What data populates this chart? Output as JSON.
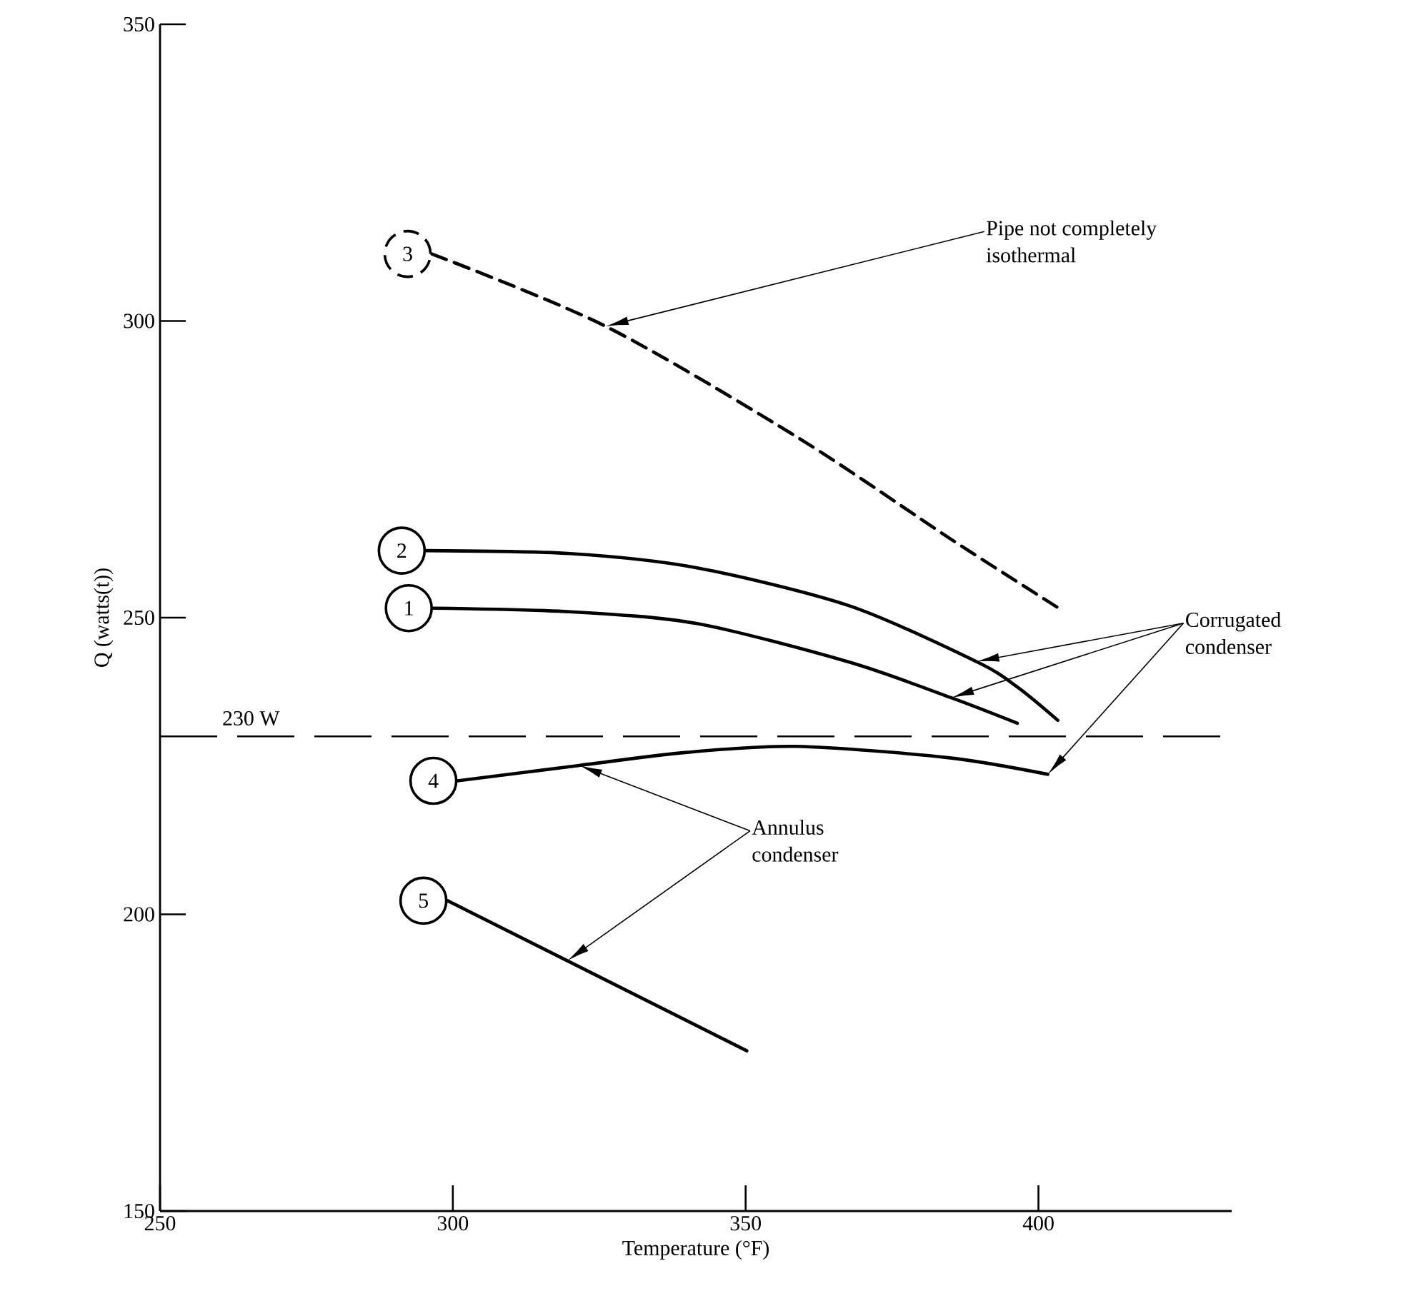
{
  "chart_data": {
    "type": "line",
    "xlabel": "Temperature (°F)",
    "ylabel": "Q (watts(t))",
    "xlim": [
      250,
      433
    ],
    "ylim": [
      150,
      350
    ],
    "xticks": [
      250,
      300,
      350,
      400
    ],
    "yticks": [
      150,
      200,
      250,
      300,
      350
    ],
    "line_style": "solid",
    "series": [
      {
        "name": "1",
        "color": "#000000",
        "x": [
          296.6,
          320,
          341.7,
          367.7,
          385.1,
          396.4
        ],
        "values": [
          251.6,
          251,
          249,
          242.5,
          236.5,
          232.2
        ]
      },
      {
        "name": "2",
        "color": "#000000",
        "x": [
          295.4,
          320,
          341.7,
          367.7,
          389.4,
          396.4,
          403.3
        ],
        "values": [
          261.3,
          260.8,
          258.4,
          252,
          242.6,
          238.3,
          232.7
        ]
      },
      {
        "name": "3",
        "color": "#000000",
        "line_style": "dashed",
        "x": [
          296.4,
          326.1,
          359,
          385.1,
          403.3
        ],
        "values": [
          311.3,
          299.1,
          280.3,
          263.2,
          251.7
        ]
      },
      {
        "name": "4",
        "color": "#000000",
        "x": [
          300.8,
          321.6,
          340,
          358.7,
          384.6,
          401.6
        ],
        "values": [
          222.5,
          225.1,
          227.3,
          228.3,
          226.4,
          223.6
        ]
      },
      {
        "name": "5",
        "color": "#000000",
        "x": [
          299.1,
          350.2
        ],
        "values": [
          202.3,
          177
        ]
      }
    ],
    "ref_lines": [
      {
        "axis": "y",
        "value": 230,
        "label": "230 W",
        "color": "#000000",
        "line_style": "dashed"
      }
    ],
    "legend": "left",
    "annotations": [
      "Pipe not completely isothermal",
      "Corrugated condenser",
      "Annulus condenser"
    ]
  }
}
